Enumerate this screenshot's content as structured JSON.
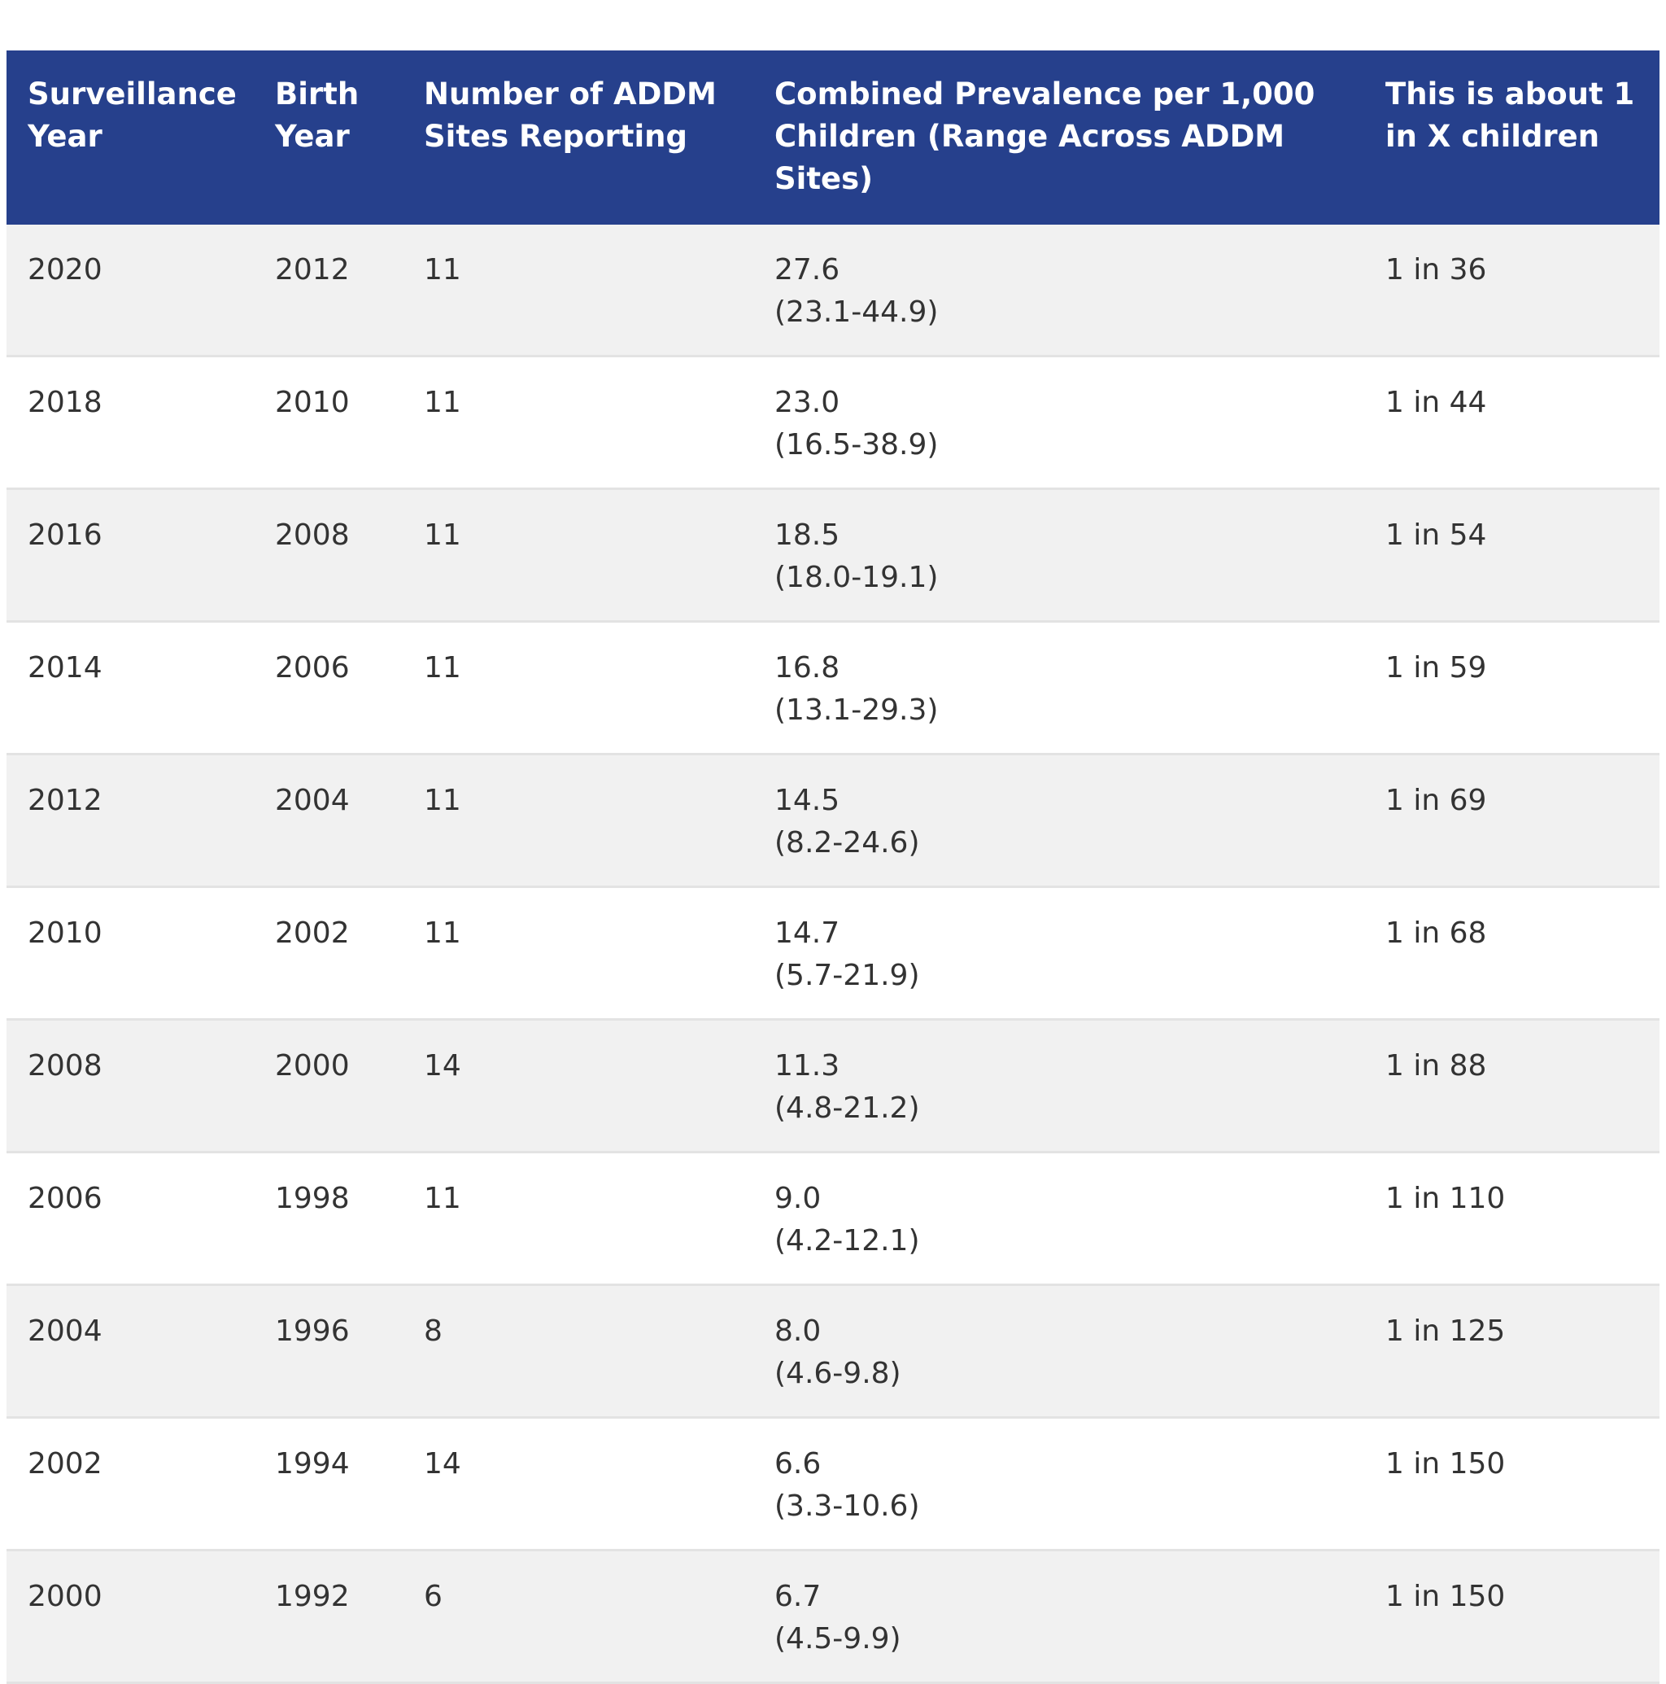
{
  "headers": {
    "surveillance_year": "Surveillance Year",
    "birth_year": "Birth Year",
    "sites": "Number of ADDM Sites Reporting",
    "prevalence": "Combined Prevalence per 1,000 Children (Range Across ADDM Sites)",
    "ratio": "This is about 1 in X children"
  },
  "rows": [
    {
      "surveillance_year": "2020",
      "birth_year": "2012",
      "sites": "11",
      "prevalence": "27.6",
      "range": "(23.1-44.9)",
      "ratio": "1 in 36"
    },
    {
      "surveillance_year": "2018",
      "birth_year": "2010",
      "sites": "11",
      "prevalence": "23.0",
      "range": "(16.5-38.9)",
      "ratio": "1 in 44"
    },
    {
      "surveillance_year": "2016",
      "birth_year": "2008",
      "sites": "11",
      "prevalence": "18.5",
      "range": "(18.0-19.1)",
      "ratio": "1 in 54"
    },
    {
      "surveillance_year": "2014",
      "birth_year": "2006",
      "sites": "11",
      "prevalence": "16.8",
      "range": "(13.1-29.3)",
      "ratio": "1 in 59"
    },
    {
      "surveillance_year": "2012",
      "birth_year": "2004",
      "sites": "11",
      "prevalence": "14.5",
      "range": "(8.2-24.6)",
      "ratio": "1 in 69"
    },
    {
      "surveillance_year": "2010",
      "birth_year": "2002",
      "sites": "11",
      "prevalence": "14.7",
      "range": "(5.7-21.9)",
      "ratio": "1 in 68"
    },
    {
      "surveillance_year": "2008",
      "birth_year": "2000",
      "sites": "14",
      "prevalence": "11.3",
      "range": "(4.8-21.2)",
      "ratio": "1 in 88"
    },
    {
      "surveillance_year": "2006",
      "birth_year": "1998",
      "sites": "11",
      "prevalence": "9.0",
      "range": "(4.2-12.1)",
      "ratio": "1 in 110"
    },
    {
      "surveillance_year": "2004",
      "birth_year": "1996",
      "sites": "8",
      "prevalence": "8.0",
      "range": "(4.6-9.8)",
      "ratio": "1 in 125"
    },
    {
      "surveillance_year": "2002",
      "birth_year": "1994",
      "sites": "14",
      "prevalence": "6.6",
      "range": "(3.3-10.6)",
      "ratio": "1 in 150"
    },
    {
      "surveillance_year": "2000",
      "birth_year": "1992",
      "sites": "6",
      "prevalence": "6.7",
      "range": "(4.5-9.9)",
      "ratio": "1 in 150"
    }
  ],
  "colors": {
    "header_bg": "#26408c",
    "header_text": "#ffffff",
    "row_odd": "#f1f1f1",
    "row_even": "#ffffff",
    "body_text": "#333333"
  }
}
